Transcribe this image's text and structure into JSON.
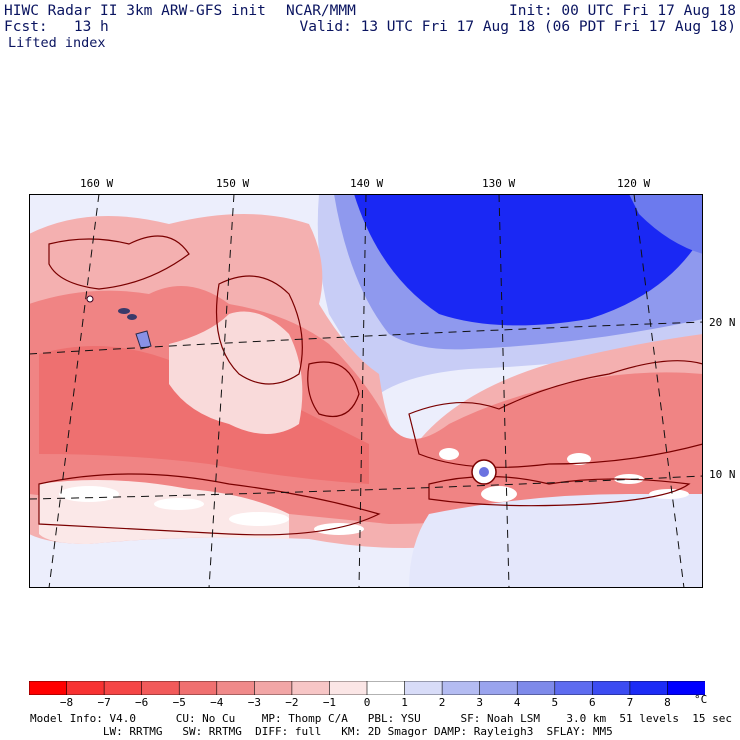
{
  "header": {
    "model_title": "HIWC Radar II 3km ARW-GFS init",
    "org": "NCAR/MMM",
    "init": "Init: 00 UTC Fri 17 Aug 18",
    "fcst": "Fcst:   13 h",
    "valid": "Valid: 13 UTC Fri 17 Aug 18 (06 PDT Fri 17 Aug 18)",
    "field": "Lifted index"
  },
  "map": {
    "lon_labels": [
      "160 W",
      "150 W",
      "140 W",
      "130 W",
      "120 W"
    ],
    "lat_labels": [
      "20 N",
      "10 N"
    ]
  },
  "colorbar": {
    "unit": "°C",
    "tick_labels": [
      "−8",
      "−7",
      "−6",
      "−5",
      "−4",
      "−3",
      "−2",
      "−1",
      "0",
      "1",
      "2",
      "3",
      "4",
      "5",
      "6",
      "7",
      "8"
    ],
    "colors": [
      "#ff0000",
      "#f83232",
      "#f54646",
      "#f25a5a",
      "#f07070",
      "#f08a8a",
      "#f2a6a6",
      "#f7c6c6",
      "#fbe6e6",
      "#ffffff",
      "#d8dcf8",
      "#b4bcf2",
      "#9aa4ee",
      "#7e8aea",
      "#5e6cf0",
      "#3c4cf2",
      "#1c2cf6",
      "#0000ff"
    ]
  },
  "footer": {
    "line1": "Model Info: V4.0      CU: No Cu    MP: Thomp C/A   PBL: YSU      SF: Noah LSM    3.0 km  51 levels  15 sec",
    "line2": "           LW: RRTMG   SW: RRTMG  DIFF: full   KM: 2D Smagor DAMP: Rayleigh3  SFLAY: MM5"
  }
}
